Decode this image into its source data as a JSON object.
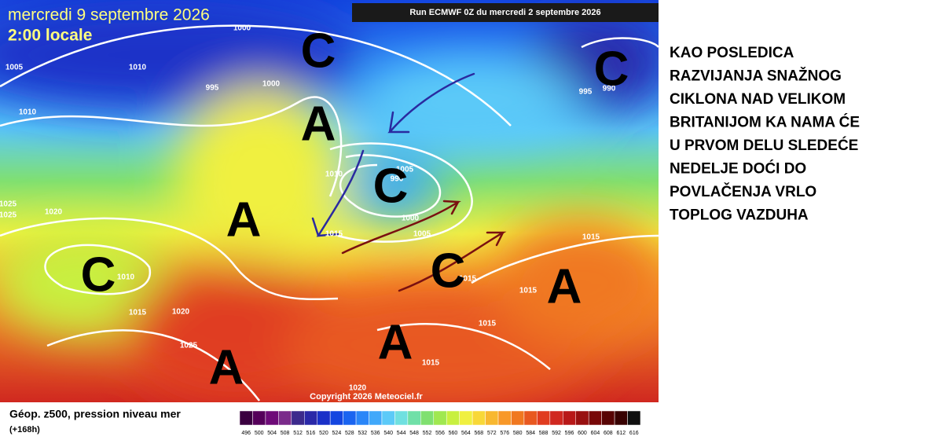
{
  "map": {
    "date": "mercredi 9 septembre 2026",
    "time": "2:00 locale",
    "run": "Run ECMWF 0Z du mercredi 2 septembre 2026",
    "copyright": "Copyright 2026 Meteociel.fr",
    "isobar_labels": [
      "1000",
      "1005",
      "1010",
      "995",
      "1000",
      "1010",
      "1010",
      "990",
      "1005",
      "1000",
      "1005",
      "1015",
      "1025",
      "1020",
      "1025",
      "1010",
      "1015",
      "1020",
      "1025",
      "1020",
      "1015",
      "1015",
      "1015",
      "1015",
      "1015",
      "995",
      "990"
    ],
    "centers": [
      "C",
      "A",
      "C",
      "A",
      "C",
      "C",
      "A",
      "A",
      "A",
      "C"
    ]
  },
  "legend": {
    "title": "Géop. z500, pression niveau mer",
    "subtitle": "(+168h)",
    "scale": [
      "496",
      "500",
      "504",
      "508",
      "512",
      "516",
      "520",
      "524",
      "528",
      "532",
      "536",
      "540",
      "544",
      "548",
      "552",
      "556",
      "560",
      "564",
      "568",
      "572",
      "576",
      "580",
      "584",
      "588",
      "592",
      "596",
      "600",
      "604",
      "608",
      "612",
      "616"
    ],
    "colors": [
      "#3a0040",
      "#55005a",
      "#6e0a78",
      "#7a2a8a",
      "#3c2a8c",
      "#2a28a8",
      "#1a30c8",
      "#1446e0",
      "#1a64f0",
      "#2a86f8",
      "#40a8fa",
      "#5ccaf8",
      "#70e0e0",
      "#70e0a8",
      "#80e070",
      "#a0e850",
      "#c8f040",
      "#f0f040",
      "#f8d838",
      "#f8b830",
      "#f89828",
      "#f07820",
      "#e85820",
      "#e03c20",
      "#d02820",
      "#b81818",
      "#981010",
      "#780808",
      "#580404",
      "#380202",
      "#101010"
    ]
  },
  "caption": [
    "KAO POSLEDICA",
    "RAZVIJANJA SNAŽNOG",
    "CIKLONA NAD VELIKOM",
    "BRITANIJOM KA NAMA ĆE",
    "U PRVOM DELU SLEDEĆE",
    "NEDELJE DOĆI DO",
    "POVLAČENJA VRLO",
    "TOPLOG VAZDUHA"
  ]
}
